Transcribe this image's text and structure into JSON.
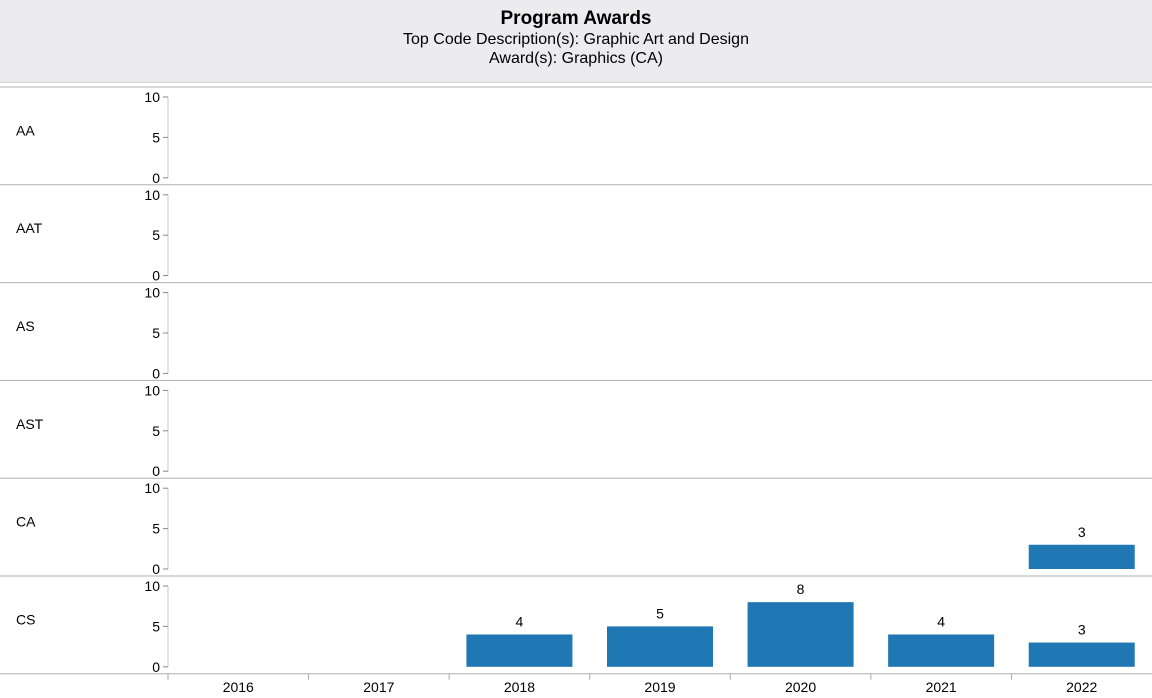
{
  "chart_data": {
    "type": "bar",
    "title": "Program Awards",
    "subtitle_lines": [
      "Top Code Description(s): Graphic Art and Design",
      "Award(s): Graphics (CA)"
    ],
    "categories": [
      "2016",
      "2017",
      "2018",
      "2019",
      "2020",
      "2021",
      "2022"
    ],
    "ylim": [
      0,
      10
    ],
    "yticks": [
      0,
      5,
      10
    ],
    "bar_color": "#1f77b4",
    "rows": [
      {
        "name": "AA",
        "values": [
          null,
          null,
          null,
          null,
          null,
          null,
          null
        ]
      },
      {
        "name": "AAT",
        "values": [
          null,
          null,
          null,
          null,
          null,
          null,
          null
        ]
      },
      {
        "name": "AS",
        "values": [
          null,
          null,
          null,
          null,
          null,
          null,
          null
        ]
      },
      {
        "name": "AST",
        "values": [
          null,
          null,
          null,
          null,
          null,
          null,
          null
        ]
      },
      {
        "name": "CA",
        "values": [
          null,
          null,
          null,
          null,
          null,
          null,
          3
        ]
      },
      {
        "name": "CS",
        "values": [
          null,
          null,
          4,
          5,
          8,
          4,
          3
        ]
      }
    ]
  }
}
